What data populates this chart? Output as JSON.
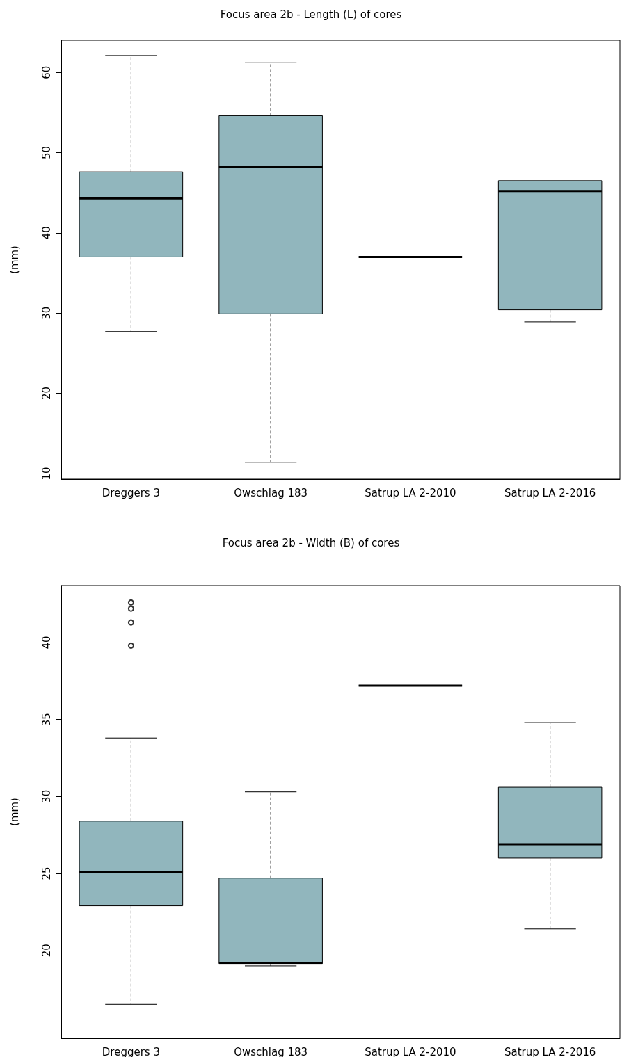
{
  "chart_data": [
    {
      "type": "box",
      "title": "Focus area 2b - Length (L) of cores",
      "ylabel": "(mm)",
      "categories": [
        "Dreggers 3",
        "Owschlag 183",
        "Satrup LA 2-2010",
        "Satrup LA 2-2016"
      ],
      "color": "#91b6bd",
      "boxes": [
        {
          "low": 27.7,
          "q1": 37.0,
          "median": 44.3,
          "q3": 47.6,
          "high": 62.1
        },
        {
          "low": 11.4,
          "q1": 29.9,
          "median": 48.2,
          "q3": 54.6,
          "high": 61.2
        },
        {
          "low": 37.0,
          "q1": 37.0,
          "median": 37.0,
          "q3": 37.0,
          "high": 37.0
        },
        {
          "low": 28.9,
          "q1": 30.4,
          "median": 45.2,
          "q3": 46.5,
          "high": 46.5
        }
      ],
      "ylim": [
        9.3,
        64
      ],
      "yticks": [
        10,
        20,
        30,
        40,
        50,
        60
      ]
    },
    {
      "type": "box",
      "title": "Focus area 2b - Width (B) of cores",
      "ylabel": "(mm)",
      "categories": [
        "Dreggers 3",
        "Owschlag 183",
        "Satrup LA 2-2010",
        "Satrup LA 2-2016"
      ],
      "color": "#91b6bd",
      "boxes": [
        {
          "low": 16.5,
          "q1": 22.9,
          "median": 25.1,
          "q3": 28.4,
          "high": 33.8,
          "outliers": [
            39.8,
            41.3,
            42.2,
            42.6
          ]
        },
        {
          "low": 19.0,
          "q1": 19.15,
          "median": 19.2,
          "q3": 24.7,
          "high": 30.3
        },
        {
          "low": 37.2,
          "q1": 37.2,
          "median": 37.2,
          "q3": 37.2,
          "high": 37.2
        },
        {
          "low": 21.4,
          "q1": 26.0,
          "median": 26.9,
          "q3": 30.6,
          "high": 34.8
        }
      ],
      "ylim": [
        14.3,
        43.7
      ],
      "yticks": [
        20,
        25,
        30,
        35,
        40
      ]
    }
  ]
}
